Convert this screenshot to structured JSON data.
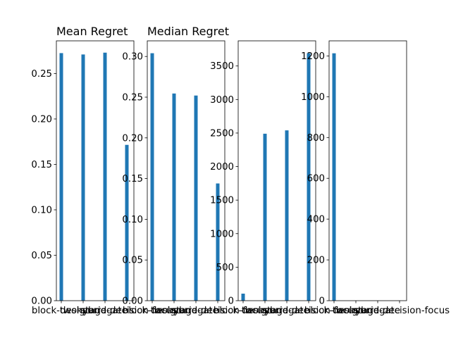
{
  "chart_data": [
    {
      "type": "bar",
      "title": "Mean Regret",
      "categories": [
        "block-design",
        "two-stage",
        "surrogate",
        "hybrid-decision-focus"
      ],
      "values": [
        0.2725,
        0.271,
        0.273,
        0.1715
      ],
      "ylim": [
        0,
        0.286
      ],
      "yticks": [
        0.0,
        0.05,
        0.1,
        0.15,
        0.2,
        0.25
      ],
      "ytick_labels": [
        "0.00",
        "0.05",
        "0.10",
        "0.15",
        "0.20",
        "0.25"
      ],
      "color": "#1f77b4"
    },
    {
      "type": "bar",
      "title": "Median Regret",
      "categories": [
        "block-design",
        "two-stage",
        "surrogate",
        "hybrid-decision-focus"
      ],
      "values": [
        0.304,
        0.2545,
        0.252,
        0.144
      ],
      "ylim": [
        0,
        0.3192
      ],
      "yticks": [
        0.0,
        0.05,
        0.1,
        0.15,
        0.2,
        0.25,
        0.3
      ],
      "ytick_labels": [
        "0.00",
        "0.05",
        "0.10",
        "0.15",
        "0.20",
        "0.25",
        "0.30"
      ],
      "color": "#1f77b4"
    },
    {
      "type": "bar",
      "title": "",
      "categories": [
        "block-design",
        "two-stage",
        "surrogate",
        "hybrid-decision-focus"
      ],
      "values": [
        105,
        2490,
        2540,
        3690
      ],
      "ylim": [
        0,
        3875
      ],
      "yticks": [
        0,
        500,
        1000,
        1500,
        2000,
        2500,
        3000,
        3500
      ],
      "ytick_labels": [
        "0",
        "500",
        "1000",
        "1500",
        "2000",
        "2500",
        "3000",
        "3500"
      ],
      "color": "#1f77b4"
    },
    {
      "type": "bar",
      "title": "",
      "categories": [
        "block-design",
        "two-stage",
        "surrogate",
        "hybrid-decision-focus"
      ],
      "values": [
        1213,
        0,
        0,
        0
      ],
      "ylim": [
        0,
        1274
      ],
      "yticks": [
        0,
        200,
        400,
        600,
        800,
        1000,
        1200
      ],
      "ytick_labels": [
        "0",
        "200",
        "400",
        "600",
        "800",
        "1000",
        "1200"
      ],
      "color": "#1f77b4"
    }
  ]
}
